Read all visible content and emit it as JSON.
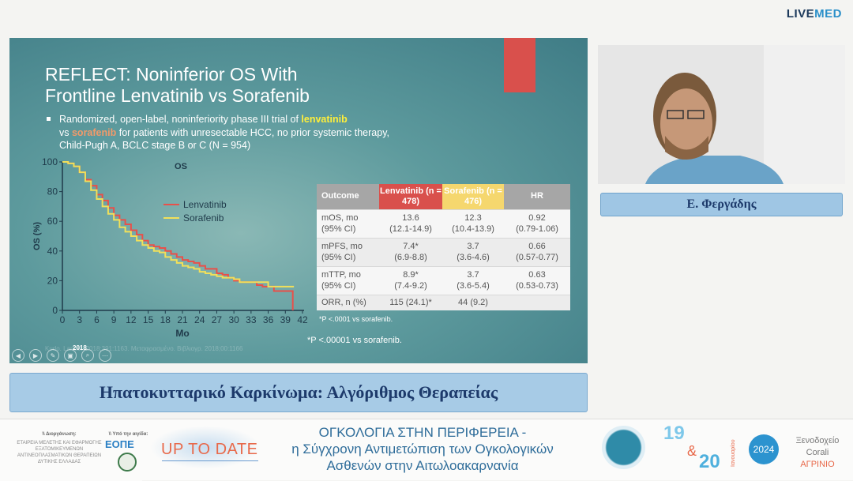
{
  "brand": {
    "live": "LIVE",
    "med": "MED"
  },
  "slide": {
    "title_line1": "REFLECT: Noninferior OS With",
    "title_line2": "Frontline Lenvatinib vs Sorafenib",
    "bullet": {
      "pre": "Randomized, open-label, noninferiority phase III trial of ",
      "len": "lenvatinib",
      "mid": "vs ",
      "sor": "sorafenib",
      "post": " for patients with unresectable HCC, no prior systemic therapy, Child-Pugh A, BCLC stage B or C (N = 954)"
    },
    "table": {
      "headers": [
        "Outcome",
        "Lenvatinib (n = 478)",
        "Sorafenib (n = 476)",
        "HR"
      ],
      "header_colors": [
        "#a6a6a6",
        "#d9504c",
        "#f5d76e",
        "#a6a6a6"
      ],
      "rows": [
        {
          "label": "mOS, mo",
          "label2": "(95% CI)",
          "len": "13.6",
          "len2": "(12.1-14.9)",
          "sor": "12.3",
          "sor2": "(10.4-13.9)",
          "hr": "0.92",
          "hr2": "(0.79-1.06)"
        },
        {
          "label": "mPFS, mo",
          "label2": "(95% CI)",
          "len": "7.4*",
          "len2": "(6.9-8.8)",
          "sor": "3.7",
          "sor2": "(3.6-4.6)",
          "hr": "0.66",
          "hr2": "(0.57-0.77)"
        },
        {
          "label": "mTTP, mo",
          "label2": "(95% CI)",
          "len": "8.9*",
          "len2": "(7.4-9.2)",
          "sor": "3.7",
          "sor2": "(3.6-5.4)",
          "hr": "0.63",
          "hr2": "(0.53-0.73)"
        },
        {
          "label": "ORR, n (%)",
          "len": "115 (24.1)*",
          "sor": "44 (9.2)",
          "hr": ""
        }
      ]
    },
    "footnote1": "*P <.0001 vs sorafenib.",
    "footnote2": "*P <.00001 vs sorafenib.",
    "year": "2018",
    "citation": "Kudo. Lancet. 2018;391:1163. Μεταφρασμένο. Βιβλιογρ. 2018;00:1166",
    "controls": [
      "previous",
      "next",
      "pen",
      "slides",
      "zoom",
      "more"
    ]
  },
  "chart_data": {
    "type": "line",
    "title": "OS",
    "xlabel": "Mo",
    "ylabel": "OS (%)",
    "xlim": [
      0,
      42
    ],
    "ylim": [
      0,
      100
    ],
    "xticks": [
      0,
      3,
      6,
      9,
      12,
      15,
      18,
      21,
      24,
      27,
      30,
      33,
      36,
      39,
      42
    ],
    "yticks": [
      0,
      20,
      40,
      60,
      80,
      100
    ],
    "legend": "center-right",
    "grid": false,
    "series": [
      {
        "name": "Lenvatinib",
        "color": "#e8504a",
        "x": [
          0,
          1,
          2,
          3,
          4,
          5,
          6,
          7,
          8,
          9,
          10,
          11,
          12,
          13,
          14,
          15,
          16,
          17,
          18,
          19,
          20,
          21,
          22,
          23,
          24,
          25,
          26,
          27,
          28,
          29,
          30,
          31,
          33,
          34,
          35,
          36,
          37,
          40.3,
          40.3
        ],
        "y": [
          100,
          99,
          97,
          93,
          88,
          84,
          78,
          74,
          69,
          64,
          61,
          58,
          54,
          51,
          47,
          44,
          43,
          42,
          40,
          38,
          36,
          34,
          33,
          32,
          30,
          28,
          28,
          25,
          24,
          22,
          20,
          19,
          19,
          17,
          16,
          16,
          13,
          13,
          0
        ]
      },
      {
        "name": "Sorafenib",
        "color": "#f1e05a",
        "x": [
          0,
          1,
          2,
          3,
          4,
          5,
          6,
          7,
          8,
          9,
          10,
          11,
          12,
          13,
          14,
          15,
          16,
          17,
          18,
          19,
          20,
          21,
          22,
          23,
          24,
          25,
          26,
          27,
          28,
          30,
          31,
          33,
          35,
          36,
          40.5
        ],
        "y": [
          100,
          99,
          97,
          93,
          87,
          81,
          75,
          70,
          65,
          61,
          56,
          53,
          50,
          47,
          44,
          42,
          40,
          39,
          36,
          34,
          32,
          30,
          29,
          28,
          26,
          25,
          24,
          23,
          22,
          21,
          19,
          19,
          19,
          16,
          16
        ]
      }
    ]
  },
  "speaker": {
    "name": "Ε. Φεργάδης"
  },
  "banner": {
    "title": "Ηπατοκυτταρικό Καρκίνωμα: Αλγόριθμος Θεραπείας"
  },
  "footer": {
    "organizer_label": "\\\\ Διοργάνωση:",
    "organizer": "ΕΤΑΙΡΕΙΑ ΜΕΛΕΤΗΣ ΚΑΙ ΕΦΑΡΜΟΓΗΣ ΕΞΑΤΟΜΙΚΕΥΜΕΝΩΝ ΑΝΤΙΝΕΟΠΛΑΣΜΑΤΙΚΩΝ ΘΕΡΑΠΕΙΩΝ ΔΥΤΙΚΗΣ ΕΛΛΑΔΑΣ",
    "auspices_label": "\\\\ Υπό την αιγίδα:",
    "eope": "ΕΟΠΕ",
    "uptodate": "UP TO DATE",
    "line1": "ΟΓΚΟΛΟΓΙΑ ΣΤΗΝ ΠΕΡΙΦΕΡΕΙΑ -",
    "line2": "η Σύγχρονη Αντιμετώπιση των Ογκολογικών",
    "line3": "Ασθενών στην Αιτωλοακαρνανία",
    "day1": "19",
    "amp": "&",
    "day2": "20",
    "month": "Ιανουαρίου",
    "year": "2024",
    "venue1": "Ξενοδοχείο",
    "venue2": "Corali",
    "city": "ΑΓΡΙΝΙΟ"
  }
}
